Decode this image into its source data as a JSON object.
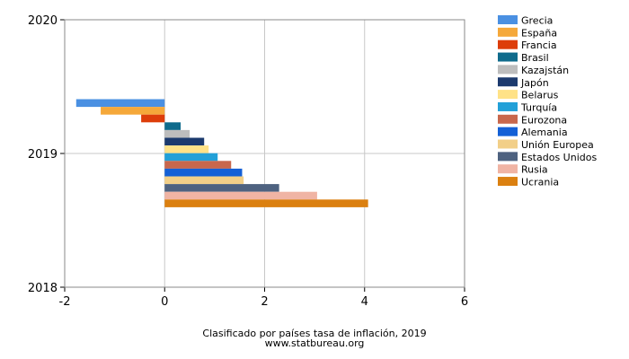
{
  "chart_data": {
    "type": "bar",
    "orientation": "horizontal",
    "title": "Clasificado por países tasa de inflación, 2019",
    "subtitle": "www.statbureau.org",
    "xlabel": "",
    "ylabel": "",
    "xlim": [
      -2,
      6
    ],
    "ylim": [
      2018,
      2020
    ],
    "x_ticks": [
      "-2",
      "0",
      "2",
      "4",
      "6"
    ],
    "y_ticks": [
      "2018",
      "2019",
      "2020"
    ],
    "categories": [
      "2019"
    ],
    "grid": true,
    "legend_position": "right",
    "series": [
      {
        "name": "Grecia",
        "values": [
          -1.77
        ],
        "color": "#4a90e2"
      },
      {
        "name": "España",
        "values": [
          -1.28
        ],
        "color": "#f5a83a"
      },
      {
        "name": "Francia",
        "values": [
          -0.47
        ],
        "color": "#dd3d0a"
      },
      {
        "name": "Brasil",
        "values": [
          0.32
        ],
        "color": "#0f6b8c"
      },
      {
        "name": "Kazajstán",
        "values": [
          0.5
        ],
        "color": "#bdbdbd"
      },
      {
        "name": "Japón",
        "values": [
          0.79
        ],
        "color": "#1c3a6e"
      },
      {
        "name": "Belarus",
        "values": [
          0.88
        ],
        "color": "#ffe287"
      },
      {
        "name": "Turquía",
        "values": [
          1.06
        ],
        "color": "#22a0d8"
      },
      {
        "name": "Eurozona",
        "values": [
          1.33
        ],
        "color": "#c8674c"
      },
      {
        "name": "Alemania",
        "values": [
          1.55
        ],
        "color": "#1460d6"
      },
      {
        "name": "Unión Europea",
        "values": [
          1.58
        ],
        "color": "#f2cf88"
      },
      {
        "name": "Estados Unidos",
        "values": [
          2.29
        ],
        "color": "#4e6280"
      },
      {
        "name": "Rusia",
        "values": [
          3.05
        ],
        "color": "#f0b4a4"
      },
      {
        "name": "Ucrania",
        "values": [
          4.07
        ],
        "color": "#db8010"
      }
    ]
  }
}
